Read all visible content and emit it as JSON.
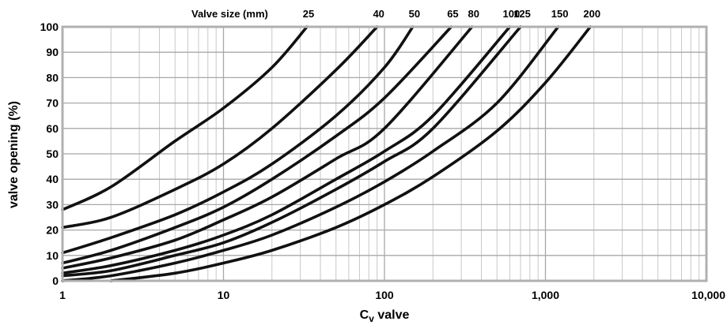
{
  "chart_data": {
    "type": "line",
    "title": "",
    "xlabel_main": "C",
    "xlabel_sub": "v",
    "xlabel_rest": " valve",
    "ylabel": "valve opening (%)",
    "x_scale": "log",
    "xlim": [
      1,
      10000
    ],
    "ylim": [
      0,
      100
    ],
    "x_ticks": [
      1,
      10,
      100,
      1000,
      10000
    ],
    "x_tick_labels": [
      "1",
      "10",
      "100",
      "1,000",
      "10,000"
    ],
    "y_ticks": [
      0,
      10,
      20,
      30,
      40,
      50,
      60,
      70,
      80,
      90,
      100
    ],
    "y_tick_labels": [
      "0",
      "10",
      "20",
      "30",
      "40",
      "50",
      "60",
      "70",
      "80",
      "90",
      "100"
    ],
    "grid": true,
    "top_label_title": "Valve size (mm)",
    "series": [
      {
        "name": "25",
        "x": [
          1,
          2,
          5,
          10,
          20,
          33
        ],
        "y": [
          28,
          37,
          55,
          68,
          84,
          100
        ]
      },
      {
        "name": "40",
        "x": [
          1,
          2,
          5,
          10,
          20,
          50,
          90
        ],
        "y": [
          21,
          25,
          36,
          46,
          60,
          83,
          100
        ]
      },
      {
        "name": "50",
        "x": [
          1,
          2,
          5,
          10,
          20,
          50,
          100,
          150
        ],
        "y": [
          11,
          17,
          26,
          35,
          46,
          65,
          84,
          100
        ]
      },
      {
        "name": "65",
        "x": [
          1,
          2,
          5,
          10,
          20,
          50,
          100,
          260
        ],
        "y": [
          7,
          12,
          21,
          29,
          40,
          57,
          72,
          100
        ]
      },
      {
        "name": "80",
        "x": [
          1,
          2,
          5,
          10,
          20,
          50,
          100,
          350
        ],
        "y": [
          5,
          9,
          16,
          24,
          33,
          48,
          60,
          100
        ]
      },
      {
        "name": "100",
        "x": [
          1,
          2,
          5,
          10,
          20,
          50,
          100,
          200,
          600
        ],
        "y": [
          3,
          6,
          12,
          18,
          26,
          40,
          51,
          65,
          100
        ]
      },
      {
        "name": "125",
        "x": [
          1,
          2,
          5,
          10,
          20,
          50,
          100,
          200,
          700
        ],
        "y": [
          2,
          4,
          10,
          15,
          23,
          36,
          47,
          60,
          100
        ]
      },
      {
        "name": "150",
        "x": [
          1,
          2,
          5,
          10,
          20,
          50,
          100,
          200,
          500,
          1200
        ],
        "y": [
          0,
          2,
          7,
          12,
          18,
          29,
          39,
          51,
          70,
          100
        ]
      },
      {
        "name": "200",
        "x": [
          2,
          5,
          10,
          20,
          50,
          100,
          200,
          500,
          1000,
          1900
        ],
        "y": [
          0,
          3,
          7,
          12,
          21,
          30,
          41,
          59,
          78,
          100
        ]
      }
    ],
    "colors": {
      "curve": "#111111",
      "grid": "#c8c8c8",
      "frame": "#b0b0b0"
    }
  }
}
